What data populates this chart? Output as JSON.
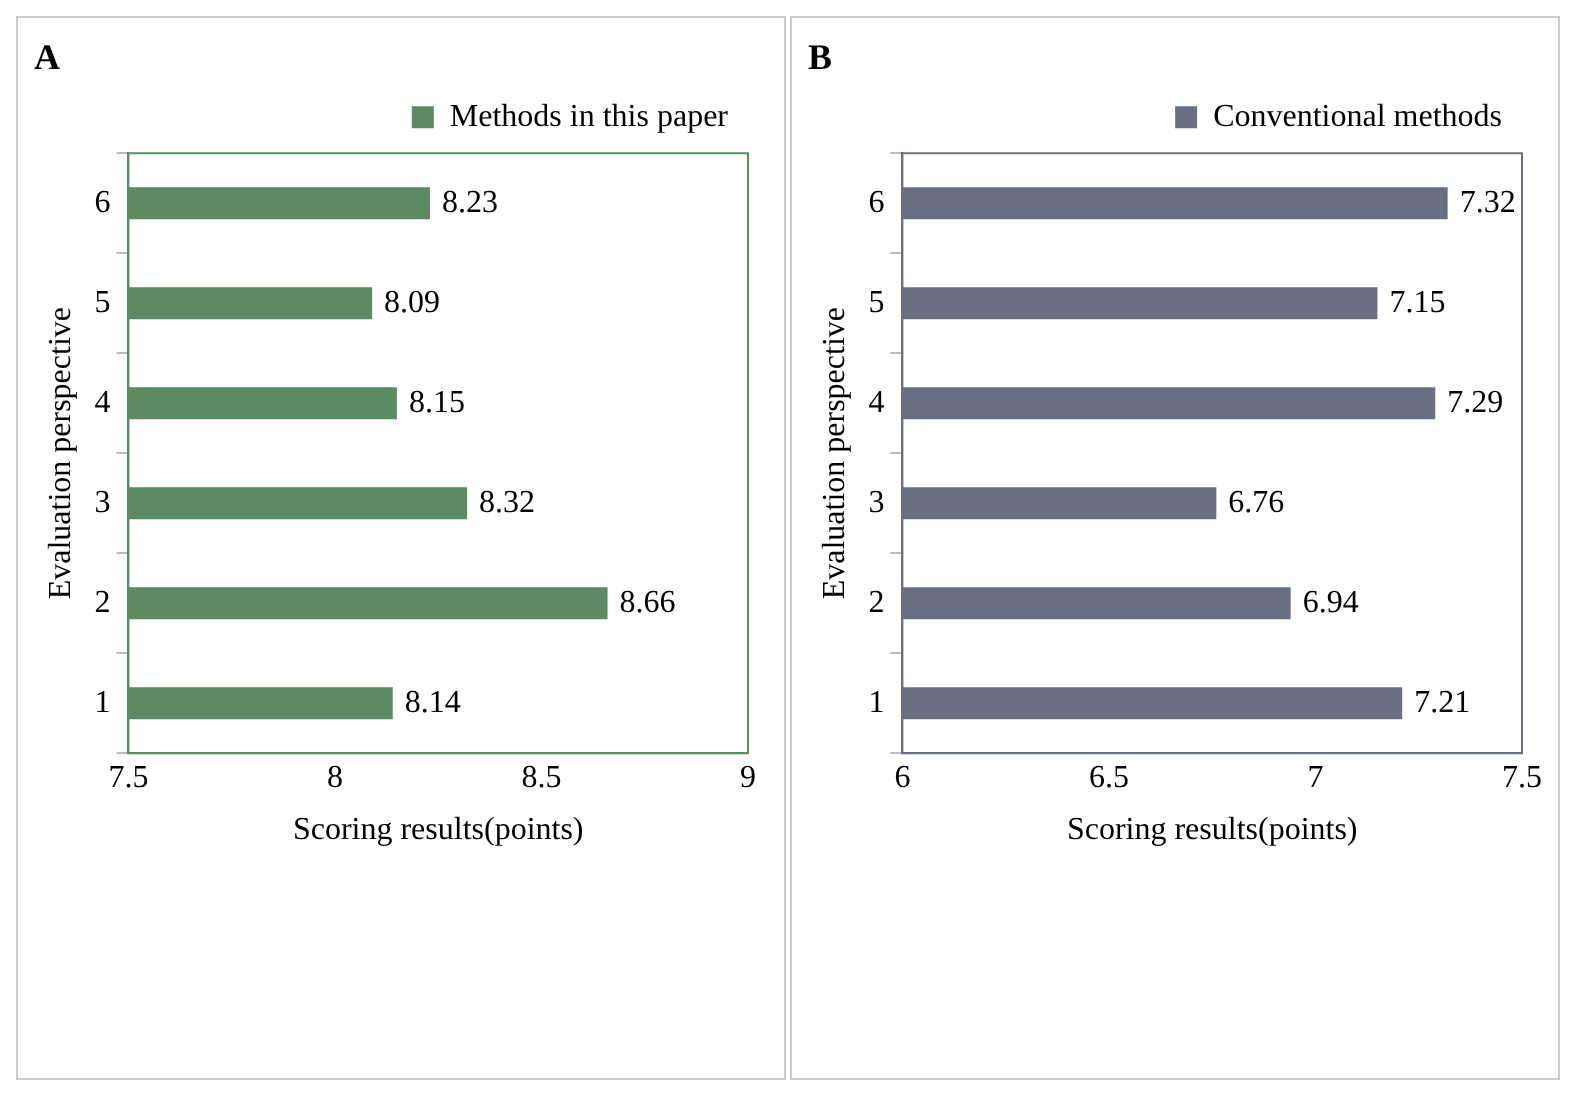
{
  "chart_data": [
    {
      "type": "bar",
      "title": "A",
      "orientation": "horizontal",
      "xlabel": "Scoring results(points)",
      "ylabel": "Evaluation perspective",
      "categories": [
        "6",
        "5",
        "4",
        "3",
        "2",
        "1"
      ],
      "series": [
        {
          "name": "Methods in this paper",
          "color": "#5b8a63",
          "values": [
            8.23,
            8.09,
            8.15,
            8.32,
            8.66,
            8.14
          ]
        }
      ],
      "xlim": [
        7.5,
        9
      ],
      "xticks": [
        7.5,
        8,
        8.5,
        9
      ],
      "legend": "top right",
      "data_labels": true,
      "grid": false
    },
    {
      "type": "bar",
      "title": "B",
      "orientation": "horizontal",
      "xlabel": "Scoring results(points)",
      "ylabel": "Evaluation perspective",
      "categories": [
        "6",
        "5",
        "4",
        "3",
        "2",
        "1"
      ],
      "series": [
        {
          "name": "Conventional methods",
          "color": "#6b6f82",
          "values": [
            7.32,
            7.15,
            7.29,
            6.76,
            6.94,
            7.21
          ]
        }
      ],
      "xlim": [
        6,
        7.5
      ],
      "xticks": [
        6,
        6.5,
        7,
        7.5
      ],
      "legend": "top right",
      "data_labels": true,
      "grid": false
    }
  ]
}
